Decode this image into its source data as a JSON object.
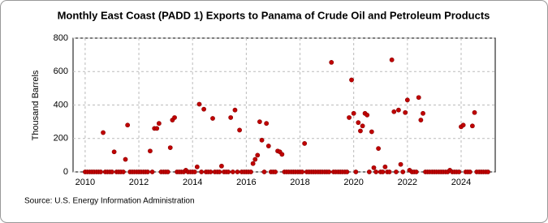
{
  "chart_data": {
    "type": "scatter",
    "title": "Monthly East Coast (PADD 1) Exports to Panama of Crude Oil and Petroleum Products",
    "y_label": "Thousand Barrels",
    "source": "Source: U.S. Energy Information Administration",
    "color": "#c00000",
    "grid": true,
    "xlim": [
      2009.55,
      2025.27
    ],
    "ylim": [
      0,
      800
    ],
    "xticks": [
      2010,
      2012,
      2014,
      2016,
      2018,
      2020,
      2022,
      2024
    ],
    "yticks": [
      0,
      200,
      400,
      600,
      800
    ],
    "x": [
      2010,
      2010.08,
      2010.17,
      2010.25,
      2010.33,
      2010.42,
      2010.5,
      2010.58,
      2010.67,
      2010.75,
      2010.83,
      2010.92,
      2011,
      2011.08,
      2011.17,
      2011.25,
      2011.33,
      2011.42,
      2011.5,
      2011.58,
      2011.67,
      2011.75,
      2011.83,
      2011.92,
      2012,
      2012.08,
      2012.17,
      2012.25,
      2012.33,
      2012.42,
      2012.5,
      2012.58,
      2012.67,
      2012.75,
      2012.83,
      2012.92,
      2013,
      2013.08,
      2013.17,
      2013.25,
      2013.33,
      2013.42,
      2013.5,
      2013.58,
      2013.67,
      2013.75,
      2013.83,
      2013.92,
      2014,
      2014.08,
      2014.17,
      2014.25,
      2014.33,
      2014.42,
      2014.5,
      2014.58,
      2014.67,
      2014.75,
      2014.83,
      2014.92,
      2015,
      2015.08,
      2015.17,
      2015.25,
      2015.33,
      2015.42,
      2015.5,
      2015.58,
      2015.67,
      2015.75,
      2015.83,
      2015.92,
      2016,
      2016.08,
      2016.17,
      2016.25,
      2016.33,
      2016.42,
      2016.5,
      2016.58,
      2016.67,
      2016.75,
      2016.83,
      2016.92,
      2017,
      2017.08,
      2017.17,
      2017.25,
      2017.33,
      2017.42,
      2017.5,
      2017.58,
      2017.67,
      2017.75,
      2017.83,
      2017.92,
      2018,
      2018.08,
      2018.17,
      2018.25,
      2018.33,
      2018.42,
      2018.5,
      2018.58,
      2018.67,
      2018.75,
      2018.83,
      2018.92,
      2019,
      2019.08,
      2019.17,
      2019.25,
      2019.33,
      2019.42,
      2019.5,
      2019.58,
      2019.67,
      2019.75,
      2019.83,
      2019.92,
      2020,
      2020.08,
      2020.17,
      2020.25,
      2020.33,
      2020.42,
      2020.5,
      2020.58,
      2020.67,
      2020.75,
      2020.83,
      2020.92,
      2021,
      2021.08,
      2021.17,
      2021.25,
      2021.33,
      2021.42,
      2021.5,
      2021.58,
      2021.67,
      2021.75,
      2021.83,
      2021.92,
      2022,
      2022.08,
      2022.17,
      2022.25,
      2022.33,
      2022.42,
      2022.5,
      2022.58,
      2022.67,
      2022.75,
      2022.83,
      2022.92,
      2023,
      2023.08,
      2023.17,
      2023.25,
      2023.33,
      2023.42,
      2023.5,
      2023.58,
      2023.67,
      2023.75,
      2023.83,
      2023.92,
      2024,
      2024.08,
      2024.17,
      2024.25,
      2024.33,
      2024.42,
      2024.5,
      2024.58,
      2024.67,
      2024.75,
      2024.83,
      2024.92,
      2025
    ],
    "values": [
      0,
      0,
      0,
      0,
      0,
      0,
      0,
      0,
      235,
      0,
      0,
      0,
      0,
      120,
      0,
      0,
      0,
      0,
      75,
      280,
      0,
      0,
      0,
      0,
      0,
      0,
      0,
      0,
      0,
      125,
      0,
      260,
      260,
      290,
      0,
      0,
      0,
      0,
      145,
      310,
      325,
      0,
      0,
      0,
      0,
      10,
      0,
      0,
      0,
      0,
      30,
      405,
      0,
      375,
      0,
      0,
      0,
      320,
      0,
      0,
      0,
      35,
      0,
      0,
      0,
      325,
      0,
      370,
      0,
      250,
      0,
      0,
      0,
      0,
      0,
      50,
      75,
      100,
      300,
      190,
      0,
      290,
      155,
      0,
      0,
      0,
      125,
      120,
      105,
      0,
      0,
      0,
      0,
      0,
      0,
      0,
      0,
      0,
      170,
      0,
      0,
      0,
      0,
      0,
      0,
      0,
      0,
      0,
      0,
      0,
      655,
      0,
      0,
      0,
      0,
      0,
      0,
      0,
      325,
      550,
      350,
      0,
      295,
      245,
      275,
      350,
      340,
      0,
      240,
      25,
      0,
      140,
      0,
      0,
      30,
      0,
      0,
      670,
      360,
      0,
      370,
      45,
      0,
      355,
      430,
      10,
      0,
      0,
      0,
      445,
      310,
      350,
      0,
      0,
      0,
      0,
      0,
      0,
      0,
      0,
      0,
      0,
      0,
      10,
      0,
      0,
      0,
      0,
      270,
      280,
      0,
      0,
      0,
      275,
      355,
      0,
      0,
      0,
      0,
      0,
      0
    ]
  }
}
